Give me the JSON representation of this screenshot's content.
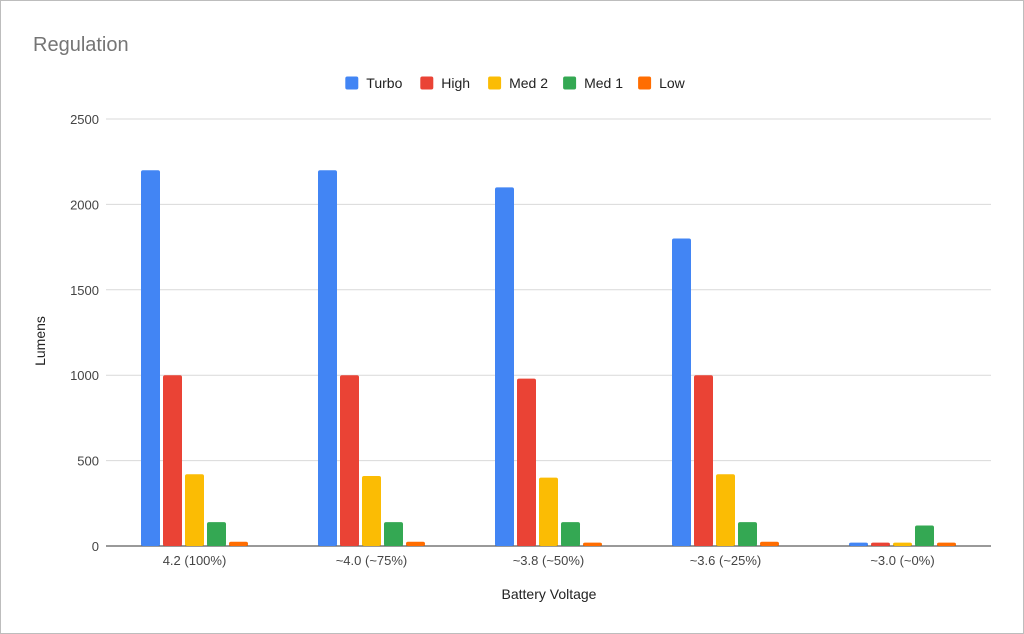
{
  "chart_data": {
    "type": "bar",
    "title": "Regulation",
    "xlabel": "Battery Voltage",
    "ylabel": "Lumens",
    "ylim": [
      0,
      2500
    ],
    "yticks": [
      0,
      500,
      1000,
      1500,
      2000,
      2500
    ],
    "grid": true,
    "legend_position": "top-center",
    "categories": [
      "4.2 (100%)",
      "~4.0 (~75%)",
      "~3.8 (~50%)",
      "~3.6 (~25%)",
      "~3.0 (~0%)"
    ],
    "series": [
      {
        "name": "Turbo",
        "color": "#4285f4",
        "values": [
          2200,
          2200,
          2100,
          1800,
          20
        ]
      },
      {
        "name": "High",
        "color": "#ea4335",
        "values": [
          1000,
          1000,
          980,
          1000,
          20
        ]
      },
      {
        "name": "Med 2",
        "color": "#fbbc04",
        "values": [
          420,
          410,
          400,
          420,
          20
        ]
      },
      {
        "name": "Med 1",
        "color": "#34a853",
        "values": [
          140,
          140,
          140,
          140,
          120
        ]
      },
      {
        "name": "Low",
        "color": "#ff6d01",
        "values": [
          25,
          25,
          20,
          25,
          20
        ]
      }
    ]
  }
}
